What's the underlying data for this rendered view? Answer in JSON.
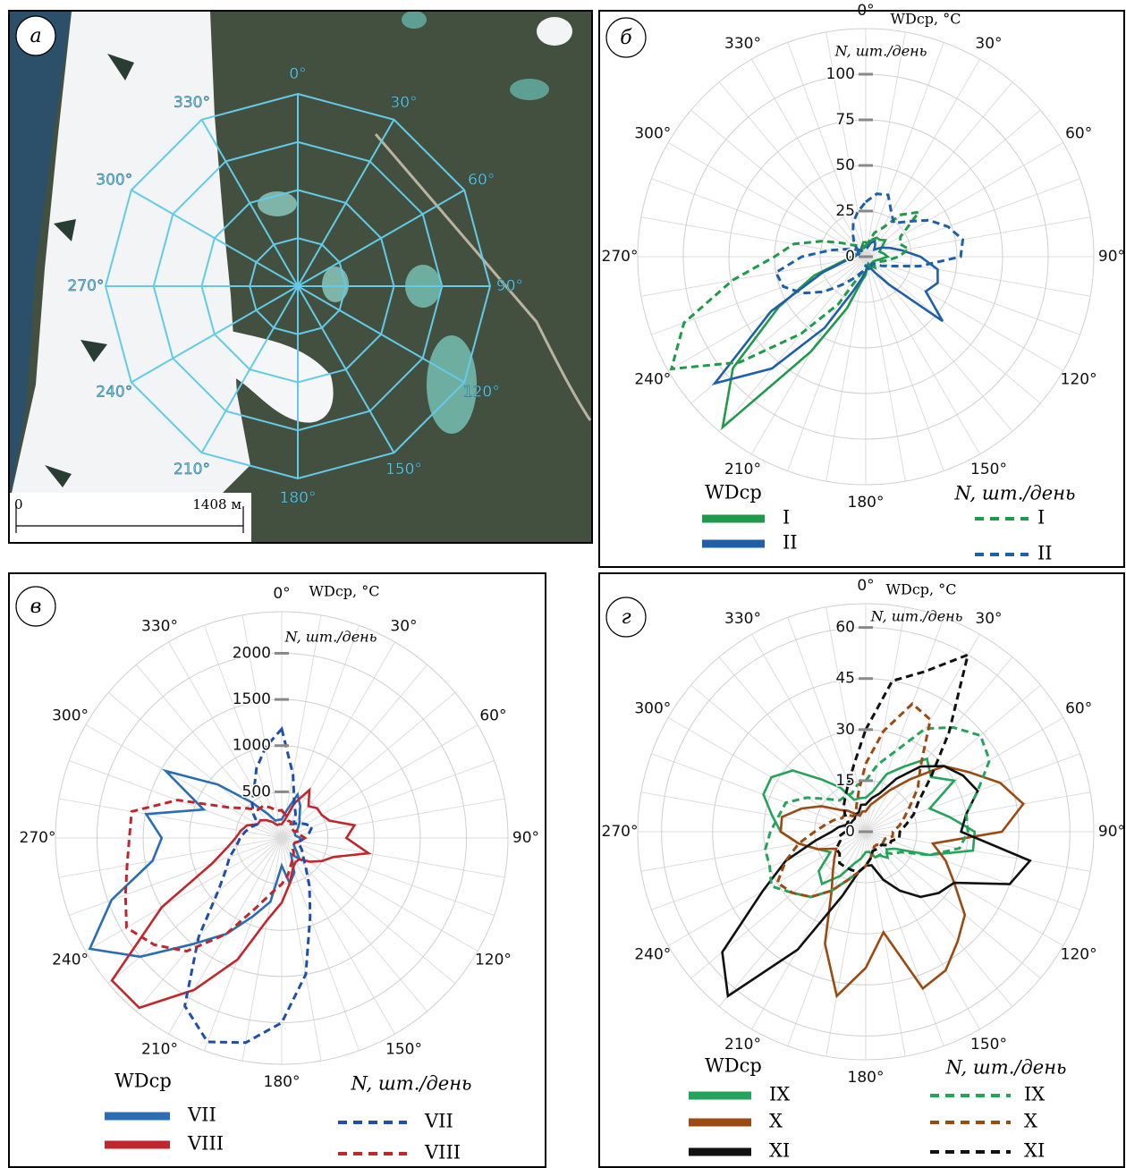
{
  "chart_data": [
    {
      "type": "map",
      "panel_label": "а",
      "color": "#63cbe8",
      "angle_labels": [
        {
          "value": 0,
          "label": "0°"
        },
        {
          "value": 30,
          "label": "30°"
        },
        {
          "value": 60,
          "label": "60°"
        },
        {
          "value": 90,
          "label": "90°"
        },
        {
          "value": 120,
          "label": "120°"
        },
        {
          "value": 150,
          "label": "150°"
        },
        {
          "value": 180,
          "label": "180°"
        },
        {
          "value": 210,
          "label": "210°"
        },
        {
          "value": 240,
          "label": "240°"
        },
        {
          "value": 270,
          "label": "270°"
        },
        {
          "value": 300,
          "label": "300°"
        },
        {
          "value": 330,
          "label": "330°"
        }
      ],
      "scale_labels": [
        "0",
        "1408 м"
      ]
    },
    {
      "type": "polar",
      "panel_label": "б",
      "radial_titles": [
        "WDср, °C",
        "N, шт./день"
      ],
      "theta": [
        0,
        10,
        20,
        30,
        40,
        50,
        60,
        70,
        80,
        90,
        100,
        110,
        120,
        130,
        140,
        150,
        160,
        170,
        180,
        190,
        200,
        210,
        220,
        230,
        240,
        250,
        260,
        270,
        280,
        290,
        300,
        310,
        320,
        330,
        340,
        350
      ],
      "angle_ticks": [
        {
          "value": 0,
          "label": "0°"
        },
        {
          "value": 30,
          "label": "30°"
        },
        {
          "value": 60,
          "label": "60°"
        },
        {
          "value": 90,
          "label": "90°"
        },
        {
          "value": 120,
          "label": "120°"
        },
        {
          "value": 150,
          "label": "150°"
        },
        {
          "value": 180,
          "label": "180°"
        },
        {
          "value": 210,
          "label": "210°"
        },
        {
          "value": 240,
          "label": "240°"
        },
        {
          "value": 270,
          "label": "270°"
        },
        {
          "value": 300,
          "label": "300°"
        },
        {
          "value": 330,
          "label": "330°"
        }
      ],
      "rlim": [
        0,
        125
      ],
      "rticks": [
        0,
        25,
        50,
        75,
        100
      ],
      "legend_titles": {
        "solid": "WDср",
        "dashed": "N, шт./день"
      },
      "series": [
        {
          "name": "I",
          "color": "#1f9a4b",
          "dashed": false,
          "values": [
            8,
            6,
            10,
            12,
            12,
            14,
            10,
            8,
            10,
            12,
            8,
            6,
            5,
            6,
            8,
            6,
            4,
            5,
            10,
            14,
            30,
            60,
            122,
            95,
            55,
            30,
            12,
            8,
            6,
            5,
            4,
            6,
            5,
            4,
            6,
            8
          ]
        },
        {
          "name": "II",
          "color": "#1f5fa8",
          "dashed": false,
          "values": [
            6,
            5,
            8,
            10,
            8,
            6,
            10,
            14,
            20,
            30,
            40,
            42,
            38,
            55,
            20,
            10,
            6,
            5,
            8,
            12,
            20,
            45,
            80,
            108,
            60,
            25,
            10,
            6,
            5,
            4,
            5,
            6,
            4,
            5,
            6,
            5
          ]
        },
        {
          "name": "I",
          "color": "#1f9a4b",
          "dashed": true,
          "values": [
            6,
            8,
            14,
            18,
            30,
            38,
            22,
            20,
            24,
            18,
            12,
            8,
            6,
            5,
            6,
            8,
            6,
            5,
            6,
            8,
            12,
            30,
            55,
            90,
            123,
            106,
            74,
            50,
            40,
            25,
            15,
            10,
            8,
            6,
            5,
            6
          ]
        },
        {
          "name": "II",
          "color": "#1f5fa8",
          "dashed": true,
          "values": [
            30,
            35,
            36,
            28,
            24,
            30,
            40,
            48,
            54,
            52,
            30,
            15,
            10,
            6,
            5,
            6,
            8,
            6,
            5,
            8,
            10,
            14,
            20,
            30,
            40,
            48,
            50,
            35,
            20,
            12,
            8,
            6,
            10,
            14,
            20,
            25
          ]
        }
      ]
    },
    {
      "type": "polar",
      "panel_label": "в",
      "radial_titles": [
        "WDср, °C",
        "N, шт./день"
      ],
      "theta": [
        0,
        10,
        20,
        30,
        40,
        50,
        60,
        70,
        80,
        90,
        100,
        110,
        120,
        130,
        140,
        150,
        160,
        170,
        180,
        190,
        200,
        210,
        220,
        230,
        240,
        250,
        260,
        270,
        280,
        290,
        300,
        310,
        320,
        330,
        340,
        350
      ],
      "angle_ticks": [
        {
          "value": 0,
          "label": "0°"
        },
        {
          "value": 30,
          "label": "30°"
        },
        {
          "value": 60,
          "label": "60°"
        },
        {
          "value": 90,
          "label": "90°"
        },
        {
          "value": 120,
          "label": "120°"
        },
        {
          "value": 150,
          "label": "150°"
        },
        {
          "value": 180,
          "label": "180°"
        },
        {
          "value": 210,
          "label": "210°"
        },
        {
          "value": 240,
          "label": "240°"
        },
        {
          "value": 270,
          "label": "270°"
        },
        {
          "value": 300,
          "label": "300°"
        },
        {
          "value": 330,
          "label": "330°"
        }
      ],
      "rlim": [
        0,
        2450
      ],
      "rticks": [
        500,
        1000,
        1500,
        2000
      ],
      "legend_titles": {
        "solid": "WDср",
        "dashed": "N, шт./день"
      },
      "series": [
        {
          "name": "VII",
          "color": "#2a6db5",
          "dashed": false,
          "values": [
            200,
            300,
            500,
            400,
            300,
            250,
            200,
            150,
            150,
            200,
            200,
            150,
            150,
            200,
            300,
            200,
            400,
            500,
            300,
            700,
            900,
            1200,
            1500,
            2000,
            2400,
            1960,
            1420,
            1300,
            1490,
            900,
            1450,
            900,
            500,
            300,
            200,
            200
          ]
        },
        {
          "name": "VIII",
          "color": "#c0272d",
          "dashed": false,
          "values": [
            150,
            200,
            400,
            600,
            450,
            500,
            500,
            550,
            800,
            700,
            955,
            600,
            500,
            400,
            300,
            300,
            350,
            500,
            700,
            900,
            1400,
            1900,
            2400,
            2400,
            1500,
            800,
            600,
            500,
            450,
            400,
            300,
            300,
            250,
            200,
            150,
            150
          ]
        },
        {
          "name": "VII",
          "color": "#1f4fa8",
          "dashed": true,
          "values": [
            1180,
            700,
            400,
            300,
            200,
            250,
            300,
            350,
            300,
            250,
            200,
            200,
            250,
            300,
            400,
            600,
            900,
            1500,
            2000,
            2250,
            2350,
            2100,
            1400,
            900,
            700,
            600,
            500,
            450,
            400,
            350,
            300,
            400,
            500,
            600,
            800,
            1000
          ]
        },
        {
          "name": "VIII",
          "color": "#c0272d",
          "dashed": true,
          "values": [
            300,
            250,
            200,
            200,
            150,
            150,
            150,
            200,
            200,
            250,
            200,
            150,
            150,
            150,
            200,
            250,
            300,
            400,
            500,
            600,
            800,
            1200,
            1600,
            1800,
            1940,
            1800,
            1700,
            1650,
            1650,
            1200,
            660,
            500,
            400,
            400,
            350,
            300
          ]
        }
      ]
    },
    {
      "type": "polar",
      "panel_label": "г",
      "radial_titles": [
        "WDср, °C",
        "N, шт./день"
      ],
      "theta": [
        0,
        10,
        20,
        30,
        40,
        50,
        60,
        70,
        80,
        90,
        100,
        110,
        120,
        130,
        140,
        150,
        160,
        170,
        180,
        190,
        200,
        210,
        220,
        230,
        240,
        250,
        260,
        270,
        280,
        290,
        300,
        310,
        320,
        330,
        340,
        350
      ],
      "angle_ticks": [
        {
          "value": 0,
          "label": "0°"
        },
        {
          "value": 30,
          "label": "30°"
        },
        {
          "value": 60,
          "label": "60°"
        },
        {
          "value": 90,
          "label": "90°"
        },
        {
          "value": 120,
          "label": "120°"
        },
        {
          "value": 150,
          "label": "150°"
        },
        {
          "value": 180,
          "label": "180°"
        },
        {
          "value": 210,
          "label": "210°"
        },
        {
          "value": 240,
          "label": "240°"
        },
        {
          "value": 270,
          "label": "270°"
        },
        {
          "value": 300,
          "label": "300°"
        },
        {
          "value": 330,
          "label": "330°"
        }
      ],
      "rlim": [
        0,
        67
      ],
      "rticks": [
        0,
        15,
        30,
        45,
        60
      ],
      "legend_titles": {
        "solid": "WDср",
        "dashed": "N, шт./день"
      },
      "series": [
        {
          "name": "IX",
          "color": "#25a35a",
          "dashed": false,
          "values": [
            10,
            12,
            18,
            22,
            28,
            25,
            30,
            20,
            25,
            32,
            32,
            20,
            10,
            8,
            10,
            8,
            8,
            6,
            6,
            8,
            10,
            15,
            20,
            18,
            12,
            15,
            20,
            25,
            28,
            32,
            32,
            28,
            20,
            15,
            10,
            10
          ]
        },
        {
          "name": "X",
          "color": "#9b4a12",
          "dashed": false,
          "values": [
            6,
            8,
            10,
            14,
            20,
            30,
            35,
            42,
            47,
            40,
            20,
            25,
            30,
            38,
            42,
            47,
            49,
            30,
            40,
            49,
            35,
            20,
            15,
            12,
            10,
            15,
            20,
            25,
            25,
            20,
            15,
            10,
            8,
            6,
            5,
            6
          ]
        },
        {
          "name": "XI",
          "color": "#111111",
          "dashed": false,
          "values": [
            8,
            10,
            12,
            18,
            25,
            30,
            33,
            35,
            30,
            28,
            49,
            45,
            30,
            28,
            25,
            20,
            15,
            10,
            10,
            12,
            20,
            40,
            63,
            55,
            35,
            25,
            15,
            10,
            8,
            6,
            5,
            5,
            5,
            6,
            6,
            8
          ]
        },
        {
          "name": "IX",
          "color": "#25a35a",
          "dashed": true,
          "values": [
            15,
            20,
            25,
            35,
            40,
            44,
            42,
            35,
            30,
            30,
            28,
            20,
            12,
            10,
            8,
            8,
            8,
            8,
            10,
            12,
            15,
            20,
            25,
            28,
            32,
            30,
            30,
            28,
            26,
            25,
            20,
            15,
            12,
            12,
            12,
            14
          ]
        },
        {
          "name": "X",
          "color": "#9b4a12",
          "dashed": true,
          "values": [
            20,
            30,
            40,
            38,
            25,
            20,
            15,
            12,
            10,
            8,
            8,
            6,
            6,
            6,
            5,
            5,
            6,
            8,
            10,
            12,
            15,
            20,
            25,
            28,
            30,
            25,
            20,
            15,
            12,
            10,
            8,
            8,
            6,
            6,
            8,
            12
          ]
        },
        {
          "name": "XI",
          "color": "#111111",
          "dashed": true,
          "values": [
            30,
            45,
            50,
            60,
            38,
            25,
            18,
            15,
            12,
            10,
            10,
            8,
            8,
            6,
            6,
            6,
            6,
            8,
            10,
            12,
            12,
            12,
            12,
            10,
            10,
            8,
            8,
            6,
            6,
            6,
            6,
            8,
            10,
            12,
            15,
            20
          ]
        }
      ]
    }
  ]
}
